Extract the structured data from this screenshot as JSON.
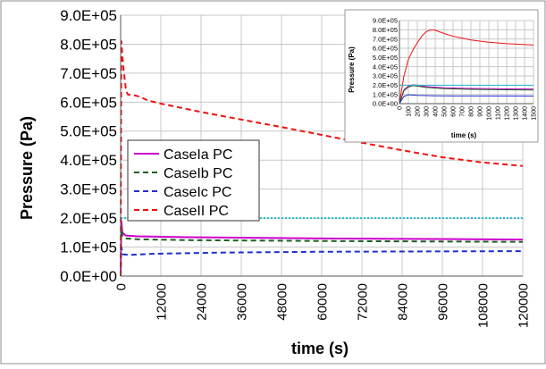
{
  "chart_data": [
    {
      "type": "line",
      "title": "",
      "xlabel": "time (s)",
      "ylabel": "Pressure (Pa)",
      "xlim": [
        0,
        120000
      ],
      "ylim": [
        0,
        900000
      ],
      "x_ticks": [
        0,
        12000,
        24000,
        36000,
        48000,
        60000,
        72000,
        84000,
        96000,
        108000,
        120000
      ],
      "x_tick_labels": [
        "0",
        "12000",
        "24000",
        "36000",
        "48000",
        "60000",
        "72000",
        "84000",
        "96000",
        "108000",
        "120000"
      ],
      "y_ticks": [
        0,
        100000,
        200000,
        300000,
        400000,
        500000,
        600000,
        700000,
        800000,
        900000
      ],
      "y_tick_labels": [
        "0.0E+00",
        "1.0E+05",
        "2.0E+05",
        "3.0E+05",
        "4.0E+05",
        "5.0E+05",
        "6.0E+05",
        "7.0E+05",
        "8.0E+05",
        "9.0E+05"
      ],
      "grid": true,
      "legend_position": "center-left",
      "series": [
        {
          "name": "CaseIa PC",
          "color": "#cc00cc",
          "dash": "solid",
          "points": [
            [
              0,
              0
            ],
            [
              200,
              190000
            ],
            [
              500,
              150000
            ],
            [
              1500,
              140000
            ],
            [
              5000,
              137000
            ],
            [
              20000,
              134000
            ],
            [
              60000,
              130000
            ],
            [
              120000,
              126000
            ]
          ]
        },
        {
          "name": "CaseIb PC",
          "color": "#1f5f1f",
          "dash": "dashed",
          "points": [
            [
              0,
              0
            ],
            [
              200,
              170000
            ],
            [
              500,
              140000
            ],
            [
              1500,
              130000
            ],
            [
              5000,
              127000
            ],
            [
              20000,
              124000
            ],
            [
              60000,
              121000
            ],
            [
              120000,
              118000
            ]
          ]
        },
        {
          "name": "CaseIc PC",
          "color": "#1f2fcc",
          "dash": "dashed",
          "points": [
            [
              0,
              0
            ],
            [
              200,
              100000
            ],
            [
              700,
              75000
            ],
            [
              2500,
              73000
            ],
            [
              10000,
              77000
            ],
            [
              30000,
              81000
            ],
            [
              60000,
              84000
            ],
            [
              120000,
              86000
            ]
          ]
        },
        {
          "name": "CaseII PC",
          "color": "#ee1111",
          "dash": "dashed",
          "points": [
            [
              0,
              0
            ],
            [
              200,
              810000
            ],
            [
              500,
              760000
            ],
            [
              1000,
              700000
            ],
            [
              1600,
              640000
            ],
            [
              2200,
              626000
            ],
            [
              4000,
              624000
            ],
            [
              6000,
              618000
            ],
            [
              8000,
              606000
            ],
            [
              12000,
              595000
            ],
            [
              24000,
              566000
            ],
            [
              36000,
              540000
            ],
            [
              48000,
              514000
            ],
            [
              60000,
              487000
            ],
            [
              72000,
              460000
            ],
            [
              84000,
              434000
            ],
            [
              96000,
              410000
            ],
            [
              108000,
              392000
            ],
            [
              120000,
              380000
            ]
          ]
        },
        {
          "name": "",
          "color": "#22bbcc",
          "dash": "dotted",
          "points": [
            [
              0,
              200000
            ],
            [
              120000,
              200000
            ]
          ]
        }
      ]
    },
    {
      "type": "line",
      "title": "",
      "xlabel": "time (s)",
      "ylabel": "Pressure (Pa)",
      "xlim": [
        0,
        1500
      ],
      "ylim": [
        0,
        900000
      ],
      "x_ticks": [
        0,
        100,
        200,
        300,
        400,
        500,
        600,
        700,
        800,
        900,
        1000,
        1100,
        1200,
        1300,
        1400,
        1500
      ],
      "x_tick_labels": [
        "0",
        "100",
        "200",
        "300",
        "400",
        "500",
        "600",
        "700",
        "800",
        "900",
        "1000",
        "1100",
        "1200",
        "1300",
        "1400",
        "1500"
      ],
      "y_ticks": [
        0,
        100000,
        200000,
        300000,
        400000,
        500000,
        600000,
        700000,
        800000,
        900000
      ],
      "y_tick_labels": [
        "0.0E+00",
        "1.0E+05",
        "2.0E+05",
        "3.0E+05",
        "4.0E+05",
        "5.0E+05",
        "6.0E+05",
        "7.0E+05",
        "8.0E+05",
        "9.0E+05"
      ],
      "grid": true,
      "legend_position": "none",
      "series": [
        {
          "name": "",
          "color": "#ee1111",
          "dash": "solid",
          "points": [
            [
              0,
              0
            ],
            [
              50,
              300000
            ],
            [
              100,
              480000
            ],
            [
              150,
              580000
            ],
            [
              200,
              660000
            ],
            [
              250,
              730000
            ],
            [
              300,
              780000
            ],
            [
              350,
              800000
            ],
            [
              400,
              795000
            ],
            [
              500,
              760000
            ],
            [
              600,
              730000
            ],
            [
              800,
              690000
            ],
            [
              1000,
              665000
            ],
            [
              1200,
              650000
            ],
            [
              1500,
              635000
            ]
          ]
        },
        {
          "name": "",
          "color": "#cc00cc",
          "dash": "solid",
          "points": [
            [
              0,
              0
            ],
            [
              50,
              150000
            ],
            [
              100,
              190000
            ],
            [
              150,
              205000
            ],
            [
              200,
              200000
            ],
            [
              300,
              185000
            ],
            [
              500,
              172000
            ],
            [
              800,
              165000
            ],
            [
              1200,
              160000
            ],
            [
              1500,
              158000
            ]
          ]
        },
        {
          "name": "",
          "color": "#1f5f1f",
          "dash": "solid",
          "points": [
            [
              0,
              0
            ],
            [
              50,
              140000
            ],
            [
              100,
              180000
            ],
            [
              150,
              195000
            ],
            [
              200,
              190000
            ],
            [
              300,
              175000
            ],
            [
              500,
              162000
            ],
            [
              800,
              155000
            ],
            [
              1200,
              150000
            ],
            [
              1500,
              148000
            ]
          ]
        },
        {
          "name": "",
          "color": "#1f2fcc",
          "dash": "solid",
          "points": [
            [
              0,
              0
            ],
            [
              50,
              80000
            ],
            [
              100,
              95000
            ],
            [
              200,
              90000
            ],
            [
              400,
              85000
            ],
            [
              800,
              83000
            ],
            [
              1500,
              82000
            ]
          ]
        },
        {
          "name": "",
          "color": "#22bbcc",
          "dash": "solid",
          "points": [
            [
              0,
              200000
            ],
            [
              1500,
              200000
            ]
          ]
        }
      ]
    }
  ]
}
